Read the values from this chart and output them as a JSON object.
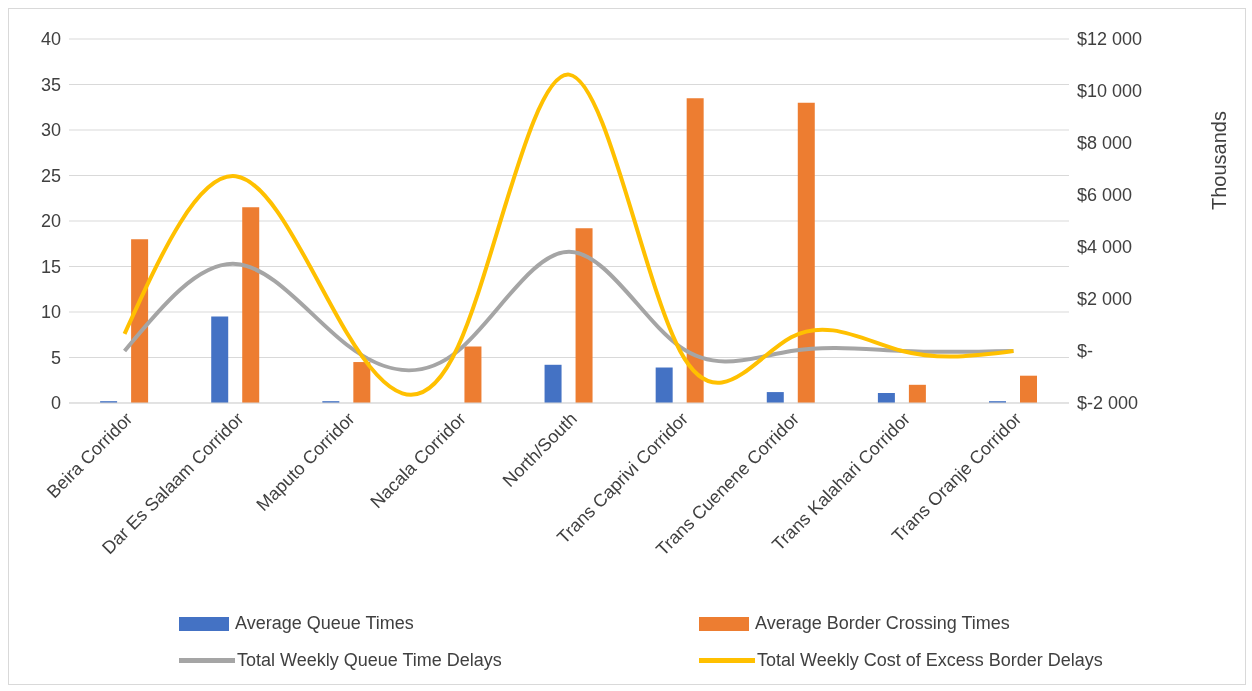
{
  "chart_data": {
    "type": "bar",
    "y2label": "Thousands",
    "categories": [
      "Beira Corridor",
      "Dar Es Salaam Corridor",
      "Maputo Corridor",
      "Nacala Corridor",
      "North/South",
      "Trans Caprivi Corridor",
      "Trans Cuenene Corridor",
      "Trans Kalahari Corridor",
      "Trans Oranje Corridor"
    ],
    "series": [
      {
        "name": "Average Queue Times",
        "color": "#4472c4",
        "values": [
          0.2,
          9.5,
          0.2,
          0,
          4.2,
          3.9,
          1.2,
          1.1,
          0.2
        ]
      },
      {
        "name": "Average Border Crossing Times",
        "color": "#ed7d31",
        "values": [
          18,
          21.5,
          4.5,
          6.2,
          19.2,
          33.5,
          33,
          2,
          3
        ]
      },
      {
        "name": "Total Weekly Queue Time Delays",
        "type": "line",
        "axis": "y2",
        "color": "#a5a5a5",
        "values": [
          0,
          3350,
          240,
          0,
          3820,
          160,
          0,
          0,
          0
        ]
      },
      {
        "name": "Total Weekly Cost of Excess Border Delays",
        "type": "line",
        "axis": "y2",
        "color": "#ffc000",
        "values": [
          660,
          6720,
          700,
          160,
          10630,
          0,
          530,
          0,
          0
        ]
      }
    ],
    "ylim": [
      0,
      40
    ],
    "yticks": [
      0,
      5,
      10,
      15,
      20,
      25,
      30,
      35,
      40
    ],
    "y2lim": [
      -2000,
      12000
    ],
    "y2ticks": [
      {
        "value": -2000,
        "label": "$-2 000"
      },
      {
        "value": 0,
        "label": "$-"
      },
      {
        "value": 2000,
        "label": "$2 000"
      },
      {
        "value": 4000,
        "label": "$4 000"
      },
      {
        "value": 6000,
        "label": "$6 000"
      },
      {
        "value": 8000,
        "label": "$8 000"
      },
      {
        "value": 10000,
        "label": "$10 000"
      },
      {
        "value": 12000,
        "label": "$12 000"
      }
    ],
    "grid": "y",
    "legend": "bottom",
    "marker": "none",
    "line_style": "solid"
  }
}
